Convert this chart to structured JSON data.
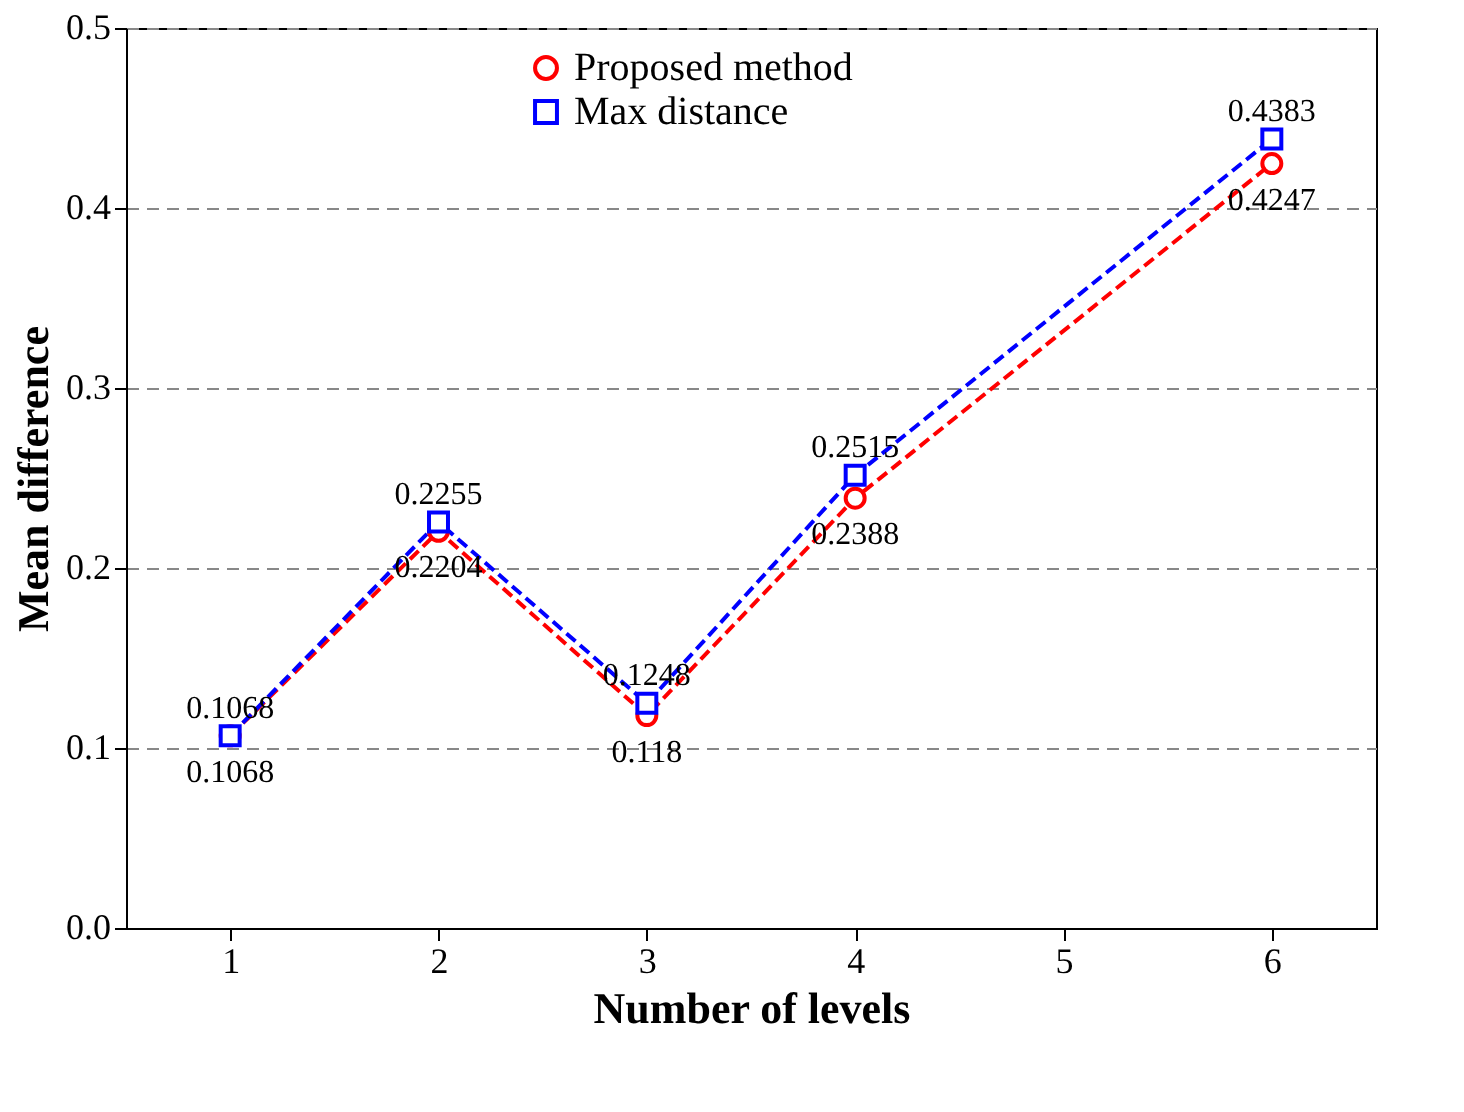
{
  "chart_data": {
    "type": "line",
    "xlabel": "Number of levels",
    "ylabel": "Mean difference",
    "x": [
      1,
      2,
      3,
      4,
      6
    ],
    "series": [
      {
        "name": "Proposed method",
        "color": "#ff0000",
        "marker": "circle",
        "values": [
          0.1068,
          0.2204,
          0.118,
          0.2388,
          0.4247
        ]
      },
      {
        "name": "Max distance",
        "color": "#0000ff",
        "marker": "square",
        "values": [
          0.1068,
          0.2255,
          0.1248,
          0.2515,
          0.4383
        ]
      }
    ],
    "xlim": [
      0.5,
      6.5
    ],
    "xticks": [
      1,
      2,
      3,
      4,
      5,
      6
    ],
    "ylim": [
      0,
      0.5
    ],
    "yticks": [
      {
        "value": 0,
        "label": "0.0"
      },
      {
        "value": 0.1,
        "label": "0.1"
      },
      {
        "value": 0.2,
        "label": "0.2"
      },
      {
        "value": 0.3,
        "label": "0.3"
      },
      {
        "value": 0.4,
        "label": "0.4"
      },
      {
        "value": 0.5,
        "label": "0.5"
      }
    ],
    "grid": "y",
    "legend": "top",
    "line_style": "dashed",
    "data_labels": true
  }
}
